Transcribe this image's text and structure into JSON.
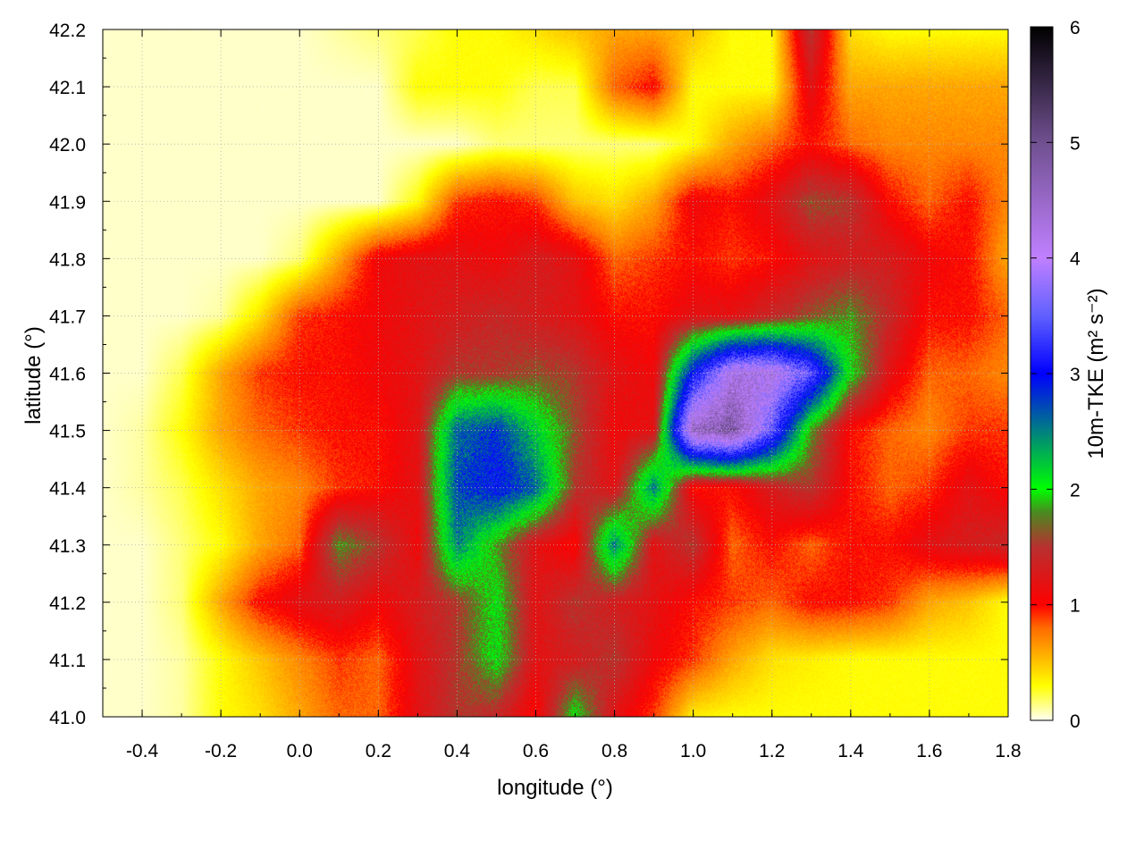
{
  "chart_data": {
    "type": "heatmap",
    "xlabel": "longitude (°)",
    "ylabel": "latitude (°)",
    "colorbar_label": "10m-TKE (m² s⁻²)",
    "xlim": [
      -0.5,
      1.8
    ],
    "ylim": [
      41.0,
      42.2
    ],
    "clim": [
      0,
      6
    ],
    "grid": true,
    "xticks": [
      "-0.4",
      "-0.2",
      "0.0",
      "0.2",
      "0.4",
      "0.6",
      "0.8",
      "1.0",
      "1.2",
      "1.4",
      "1.6",
      "1.8"
    ],
    "yticks": [
      "41.0",
      "41.1",
      "41.2",
      "41.3",
      "41.4",
      "41.5",
      "41.6",
      "41.7",
      "41.8",
      "41.9",
      "42.0",
      "42.1",
      "42.2"
    ],
    "cticks": [
      "0",
      "1",
      "2",
      "3",
      "4",
      "5",
      "6"
    ],
    "colormap": [
      [
        0,
        "#fffff2"
      ],
      [
        0.3,
        "#ffff00"
      ],
      [
        0.8,
        "#ff6a00"
      ],
      [
        1.0,
        "#ff0000"
      ],
      [
        1.5,
        "#b83030"
      ],
      [
        1.8,
        "#4a8a20"
      ],
      [
        2.0,
        "#00ff00"
      ],
      [
        2.5,
        "#008080"
      ],
      [
        3.0,
        "#0000ff"
      ],
      [
        3.5,
        "#6060ff"
      ],
      [
        4.0,
        "#c080ff"
      ],
      [
        5.0,
        "#705090"
      ],
      [
        6.0,
        "#000000"
      ]
    ],
    "grid_lon": [
      -0.5,
      -0.4,
      -0.3,
      -0.2,
      -0.1,
      0.0,
      0.1,
      0.2,
      0.3,
      0.4,
      0.5,
      0.6,
      0.7,
      0.8,
      0.9,
      1.0,
      1.1,
      1.2,
      1.3,
      1.4,
      1.5,
      1.6,
      1.7,
      1.8
    ],
    "grid_lat": [
      42.2,
      42.1,
      42.0,
      41.9,
      41.8,
      41.7,
      41.6,
      41.5,
      41.4,
      41.3,
      41.2,
      41.1,
      41.0
    ],
    "values": [
      [
        0.05,
        0.05,
        0.05,
        0.05,
        0.05,
        0.05,
        0.1,
        0.15,
        0.2,
        0.3,
        0.3,
        0.4,
        0.5,
        0.6,
        0.6,
        0.5,
        0.3,
        0.3,
        1.5,
        0.4,
        0.3,
        0.3,
        0.3,
        0.3
      ],
      [
        0.05,
        0.05,
        0.05,
        0.05,
        0.05,
        0.05,
        0.05,
        0.05,
        0.3,
        0.3,
        0.3,
        0.2,
        0.2,
        0.8,
        1.0,
        0.3,
        0.3,
        0.3,
        1.2,
        0.6,
        0.6,
        0.6,
        0.6,
        0.6
      ],
      [
        0.05,
        0.05,
        0.05,
        0.05,
        0.05,
        0.05,
        0.05,
        0.05,
        0.05,
        0.05,
        0.15,
        0.15,
        0.15,
        0.15,
        0.15,
        0.3,
        0.6,
        0.8,
        1.0,
        0.8,
        0.7,
        0.7,
        0.7,
        0.7
      ],
      [
        0.05,
        0.05,
        0.05,
        0.05,
        0.05,
        0.05,
        0.05,
        0.05,
        0.3,
        0.9,
        1.0,
        0.9,
        0.5,
        0.4,
        0.6,
        1.1,
        1.0,
        1.2,
        1.6,
        1.5,
        1.0,
        0.8,
        1.0,
        0.7
      ],
      [
        0.05,
        0.05,
        0.05,
        0.05,
        0.05,
        0.15,
        0.6,
        1.1,
        1.2,
        1.2,
        1.1,
        1.3,
        1.2,
        0.8,
        0.9,
        1.0,
        0.9,
        1.0,
        1.2,
        1.3,
        1.3,
        1.1,
        1.0,
        0.6
      ],
      [
        0.05,
        0.05,
        0.05,
        0.1,
        0.4,
        0.9,
        1.0,
        1.1,
        1.2,
        1.3,
        1.4,
        1.3,
        1.2,
        1.0,
        1.0,
        1.2,
        1.2,
        1.4,
        1.6,
        1.8,
        1.4,
        1.0,
        1.0,
        0.8
      ],
      [
        0.05,
        0.05,
        0.2,
        0.6,
        0.9,
        1.0,
        1.0,
        1.1,
        1.2,
        1.5,
        1.5,
        1.6,
        1.5,
        1.2,
        1.1,
        3.0,
        4.2,
        4.2,
        3.5,
        2.0,
        1.2,
        0.8,
        0.8,
        0.7
      ],
      [
        0.05,
        0.1,
        0.3,
        0.6,
        0.8,
        0.9,
        1.0,
        1.0,
        1.2,
        2.6,
        2.8,
        2.2,
        1.6,
        1.1,
        1.2,
        4.5,
        4.8,
        3.5,
        1.8,
        1.0,
        0.8,
        0.7,
        0.9,
        0.9
      ],
      [
        0.05,
        0.1,
        0.2,
        0.4,
        0.6,
        0.7,
        0.9,
        1.0,
        1.2,
        2.7,
        3.0,
        2.6,
        1.5,
        1.2,
        2.5,
        1.0,
        1.0,
        1.3,
        1.5,
        1.0,
        0.8,
        0.9,
        1.2,
        1.0
      ],
      [
        0.05,
        0.05,
        0.15,
        0.3,
        0.6,
        0.8,
        1.8,
        1.5,
        1.1,
        2.5,
        1.8,
        1.2,
        1.0,
        2.5,
        1.2,
        1.5,
        0.8,
        1.0,
        0.8,
        1.0,
        1.0,
        1.2,
        1.3,
        1.4
      ],
      [
        0.05,
        0.05,
        0.15,
        0.6,
        1.0,
        1.2,
        1.3,
        1.1,
        1.3,
        1.5,
        2.0,
        1.2,
        1.5,
        1.3,
        1.2,
        1.0,
        0.9,
        0.8,
        1.0,
        1.0,
        0.9,
        0.6,
        0.5,
        0.3
      ],
      [
        0.05,
        0.05,
        0.1,
        0.3,
        0.5,
        0.7,
        0.9,
        0.8,
        1.2,
        1.5,
        2.0,
        1.2,
        1.3,
        1.5,
        1.1,
        0.9,
        0.6,
        0.4,
        0.35,
        0.3,
        0.3,
        0.3,
        0.3,
        0.3
      ],
      [
        0.05,
        0.05,
        0.1,
        0.3,
        0.4,
        0.6,
        0.8,
        0.8,
        1.2,
        1.5,
        1.4,
        1.0,
        2.0,
        1.2,
        0.9,
        0.35,
        0.3,
        0.3,
        0.3,
        0.3,
        0.3,
        0.3,
        0.3,
        0.3
      ]
    ]
  }
}
